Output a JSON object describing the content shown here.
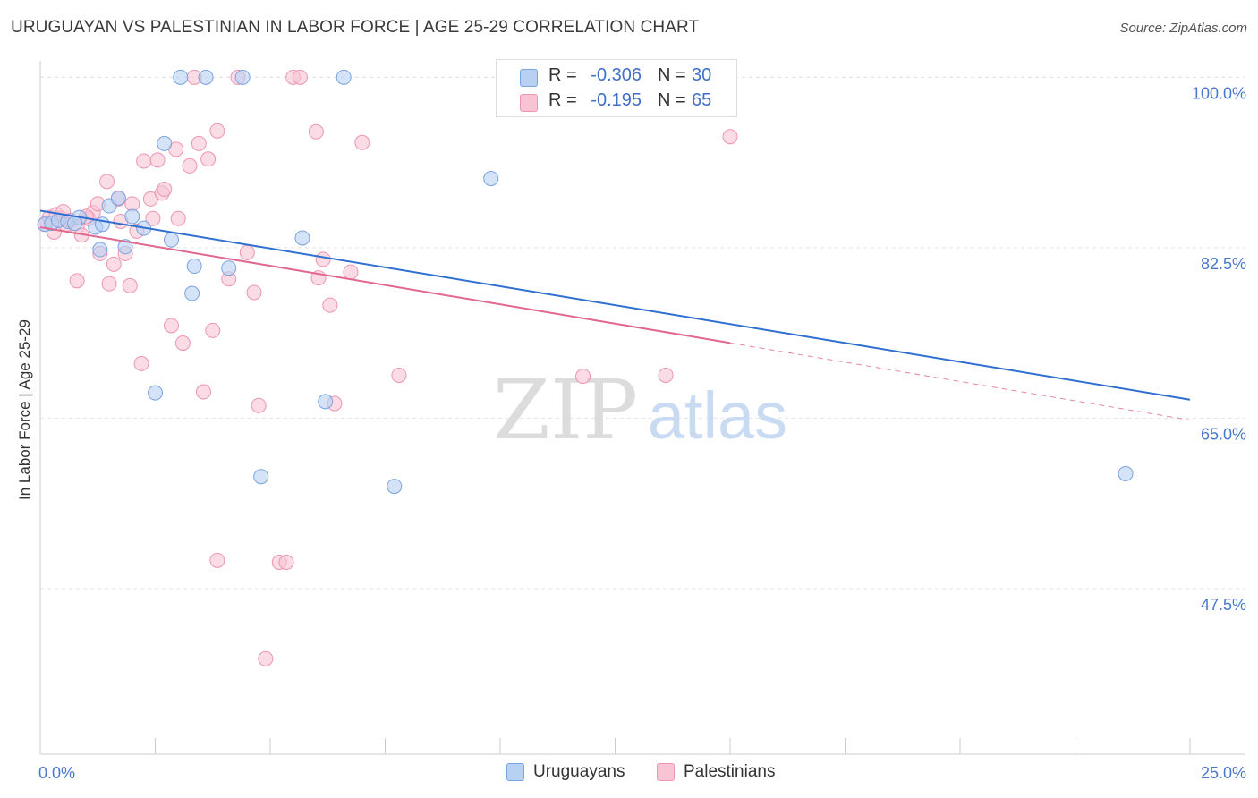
{
  "title": "URUGUAYAN VS PALESTINIAN IN LABOR FORCE | AGE 25-29 CORRELATION CHART",
  "source": "Source: ZipAtlas.com",
  "watermark": {
    "zip": "ZIP",
    "atlas": "atlas"
  },
  "colors": {
    "uruguayan_fill": "#b8d0f2",
    "uruguayan_stroke": "#7aa3e0",
    "uruguayan_line": "#2f6fd0",
    "palestinian_fill": "#f8c4d4",
    "palestinian_stroke": "#ec95b2",
    "palestinian_line": "#e0678f",
    "tick_text": "#4a78c9",
    "grid": "#e4e4e4"
  },
  "legend": {
    "uruguayans": {
      "r_label": "R =",
      "r_value": "-0.306",
      "n_label": "N =",
      "n_value": "30"
    },
    "palestinians": {
      "r_label": "R =",
      "r_value": "-0.195",
      "n_label": "N =",
      "n_value": "65"
    }
  },
  "bottom_legend": {
    "uruguayans": "Uruguayans",
    "palestinians": "Palestinians"
  },
  "chart_data": {
    "type": "scatter",
    "title": "URUGUAYAN VS PALESTINIAN IN LABOR FORCE | AGE 25-29 CORRELATION CHART",
    "xlabel": "",
    "ylabel": "In Labor Force | Age 25-29",
    "xlim": [
      0,
      25
    ],
    "ylim": [
      30.5,
      101.5
    ],
    "x_tick_labels": [
      {
        "value": 0,
        "label": "0.0%"
      },
      {
        "value": 25,
        "label": "25.0%"
      }
    ],
    "y_ticks": [
      {
        "value": 100.0,
        "label": "100.0%"
      },
      {
        "value": 82.5,
        "label": "82.5%"
      },
      {
        "value": 65.0,
        "label": "65.0%"
      },
      {
        "value": 47.5,
        "label": "47.5%"
      }
    ],
    "series": [
      {
        "name": "Uruguayans",
        "points": [
          [
            0.1,
            84.9
          ],
          [
            0.25,
            85.0
          ],
          [
            0.4,
            85.3
          ],
          [
            0.6,
            85.2
          ],
          [
            0.85,
            85.6
          ],
          [
            1.2,
            84.6
          ],
          [
            1.35,
            84.9
          ],
          [
            1.5,
            86.8
          ],
          [
            1.7,
            87.6
          ],
          [
            1.85,
            82.6
          ],
          [
            2.0,
            85.7
          ],
          [
            2.25,
            84.5
          ],
          [
            2.5,
            67.6
          ],
          [
            2.7,
            93.2
          ],
          [
            2.85,
            83.3
          ],
          [
            3.05,
            100.0
          ],
          [
            3.3,
            77.8
          ],
          [
            3.35,
            80.6
          ],
          [
            3.6,
            100.0
          ],
          [
            4.1,
            80.4
          ],
          [
            4.4,
            100.0
          ],
          [
            4.8,
            59.0
          ],
          [
            5.7,
            83.5
          ],
          [
            6.2,
            66.7
          ],
          [
            6.6,
            100.0
          ],
          [
            7.7,
            58.0
          ],
          [
            9.8,
            89.6
          ],
          [
            23.6,
            59.3
          ],
          [
            1.3,
            82.3
          ],
          [
            0.75,
            85.0
          ]
        ],
        "trend": {
          "x_start": 0,
          "y_start": 86.3,
          "x_end": 25,
          "y_end": 66.9,
          "dashed_from": null
        }
      },
      {
        "name": "Palestinians",
        "points": [
          [
            0.1,
            84.9
          ],
          [
            0.2,
            85.6
          ],
          [
            0.35,
            85.9
          ],
          [
            0.45,
            85.5
          ],
          [
            0.55,
            84.9
          ],
          [
            0.65,
            85.3
          ],
          [
            0.8,
            84.6
          ],
          [
            0.8,
            79.1
          ],
          [
            0.9,
            83.8
          ],
          [
            1.05,
            85.5
          ],
          [
            1.15,
            86.1
          ],
          [
            1.25,
            87.0
          ],
          [
            1.3,
            81.9
          ],
          [
            1.45,
            89.3
          ],
          [
            1.5,
            78.8
          ],
          [
            1.6,
            80.8
          ],
          [
            1.7,
            87.5
          ],
          [
            1.75,
            85.2
          ],
          [
            1.85,
            81.9
          ],
          [
            1.95,
            78.6
          ],
          [
            2.0,
            87.0
          ],
          [
            2.1,
            84.2
          ],
          [
            2.2,
            70.6
          ],
          [
            2.25,
            91.4
          ],
          [
            2.4,
            87.5
          ],
          [
            2.45,
            85.5
          ],
          [
            2.55,
            91.5
          ],
          [
            2.65,
            88.1
          ],
          [
            2.7,
            88.5
          ],
          [
            2.85,
            74.5
          ],
          [
            2.95,
            92.6
          ],
          [
            3.0,
            85.5
          ],
          [
            3.1,
            72.7
          ],
          [
            3.25,
            90.9
          ],
          [
            3.35,
            100.0
          ],
          [
            3.45,
            93.2
          ],
          [
            3.55,
            67.7
          ],
          [
            3.65,
            91.6
          ],
          [
            3.75,
            74.0
          ],
          [
            3.85,
            50.4
          ],
          [
            3.85,
            94.5
          ],
          [
            4.1,
            79.3
          ],
          [
            4.3,
            100.0
          ],
          [
            4.5,
            82.0
          ],
          [
            4.65,
            77.9
          ],
          [
            4.75,
            66.3
          ],
          [
            4.9,
            40.3
          ],
          [
            5.2,
            50.2
          ],
          [
            5.35,
            50.2
          ],
          [
            5.5,
            100.0
          ],
          [
            5.65,
            100.0
          ],
          [
            6.0,
            94.4
          ],
          [
            6.05,
            79.4
          ],
          [
            6.15,
            81.3
          ],
          [
            6.3,
            76.6
          ],
          [
            6.4,
            66.5
          ],
          [
            6.75,
            80.0
          ],
          [
            7.0,
            93.3
          ],
          [
            7.8,
            69.4
          ],
          [
            11.8,
            69.3
          ],
          [
            13.6,
            69.4
          ],
          [
            15.0,
            93.9
          ],
          [
            0.5,
            86.2
          ],
          [
            1.0,
            85.7
          ],
          [
            0.3,
            84.1
          ]
        ],
        "trend": {
          "x_start": 0,
          "y_start": 84.6,
          "x_end": 25,
          "y_end": 64.8,
          "dashed_from": 15.0
        }
      }
    ]
  }
}
